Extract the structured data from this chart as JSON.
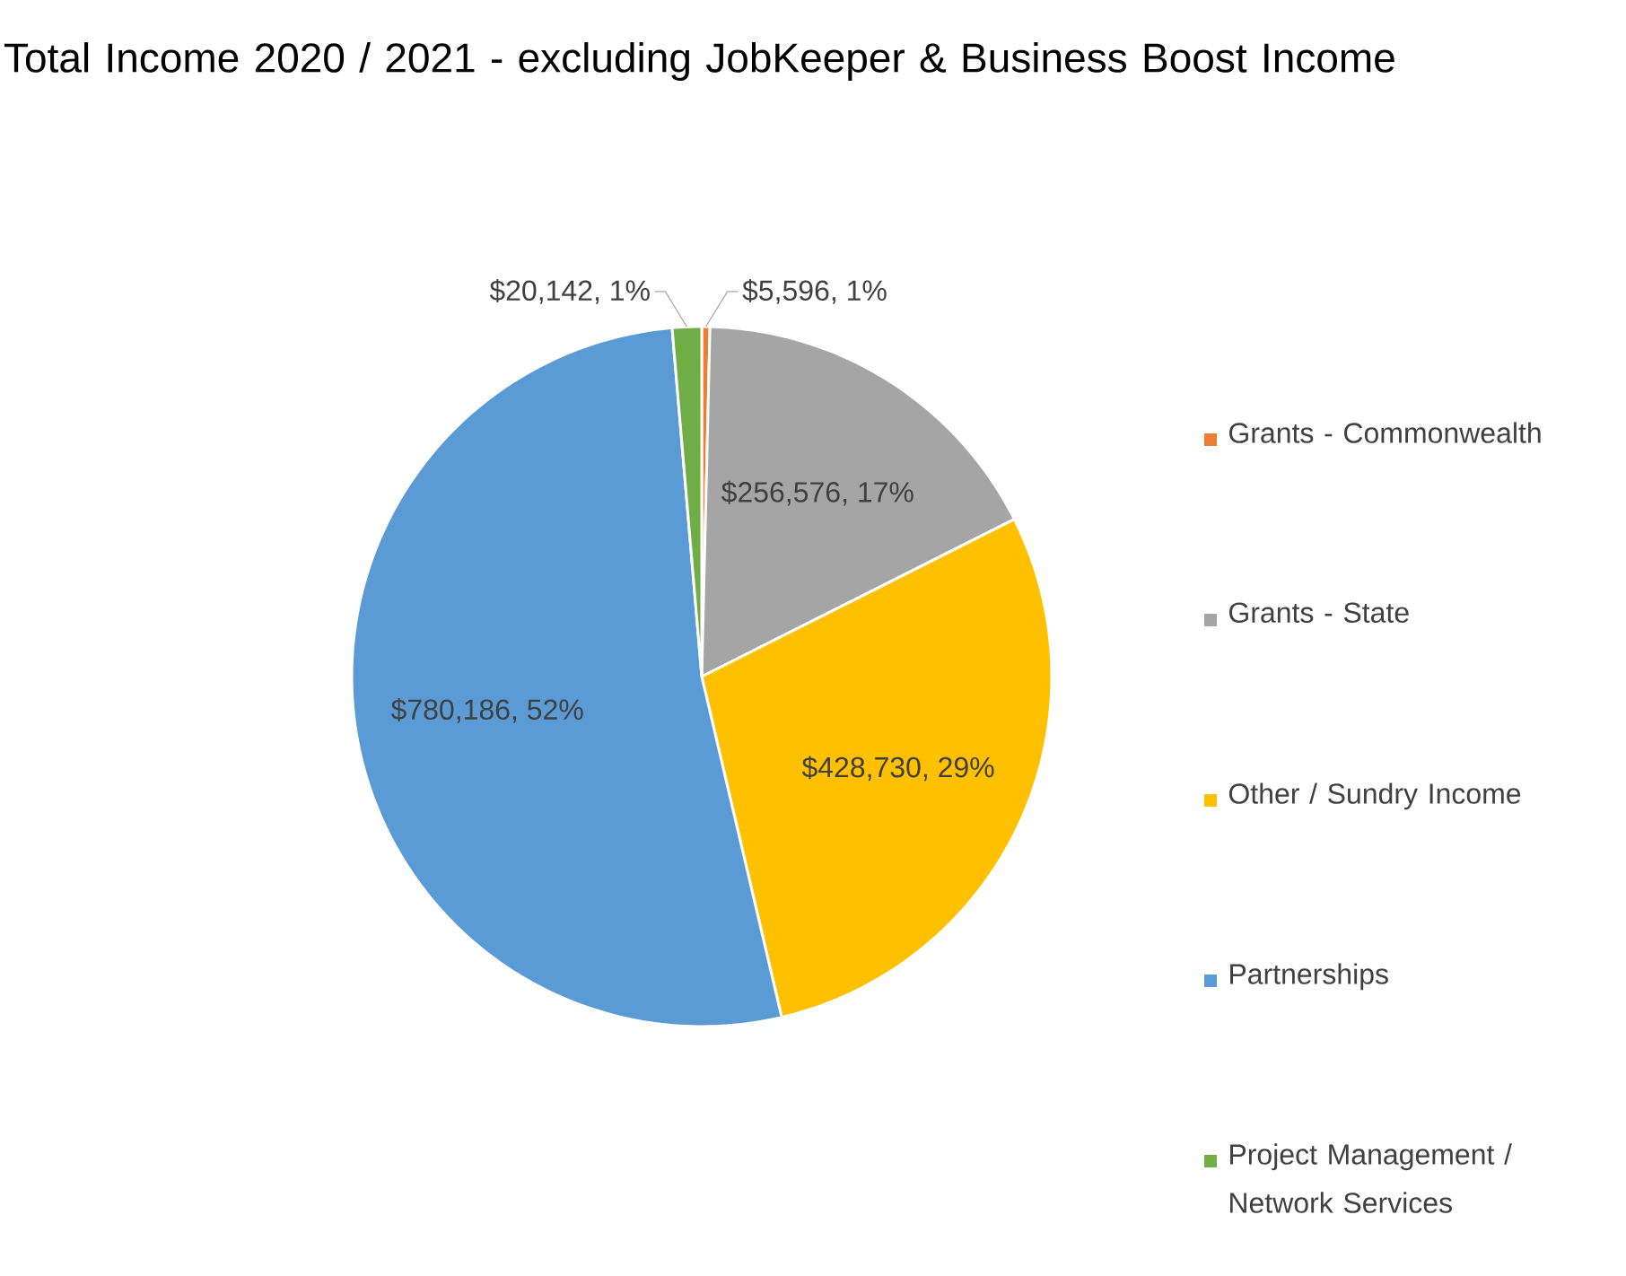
{
  "chart_data": {
    "type": "pie",
    "title": "Total Income 2020 / 2021 - excluding JobKeeper & Business Boost Income",
    "categories": [
      "Grants - Commonwealth",
      "Grants - State",
      "Other / Sundry Income",
      "Partnerships",
      "Project Management / Network Services"
    ],
    "values": [
      5596,
      256576,
      428730,
      780186,
      20142
    ],
    "colors": [
      "#ed7d31",
      "#a5a5a5",
      "#ffc000",
      "#5b9bd5",
      "#70ad47"
    ],
    "value_labels": [
      "$5,596, 1%",
      "$256,576, 17%",
      "$428,730, 29%",
      "$780,186, 52%",
      "$20,142, 1%"
    ],
    "legend": "right"
  }
}
